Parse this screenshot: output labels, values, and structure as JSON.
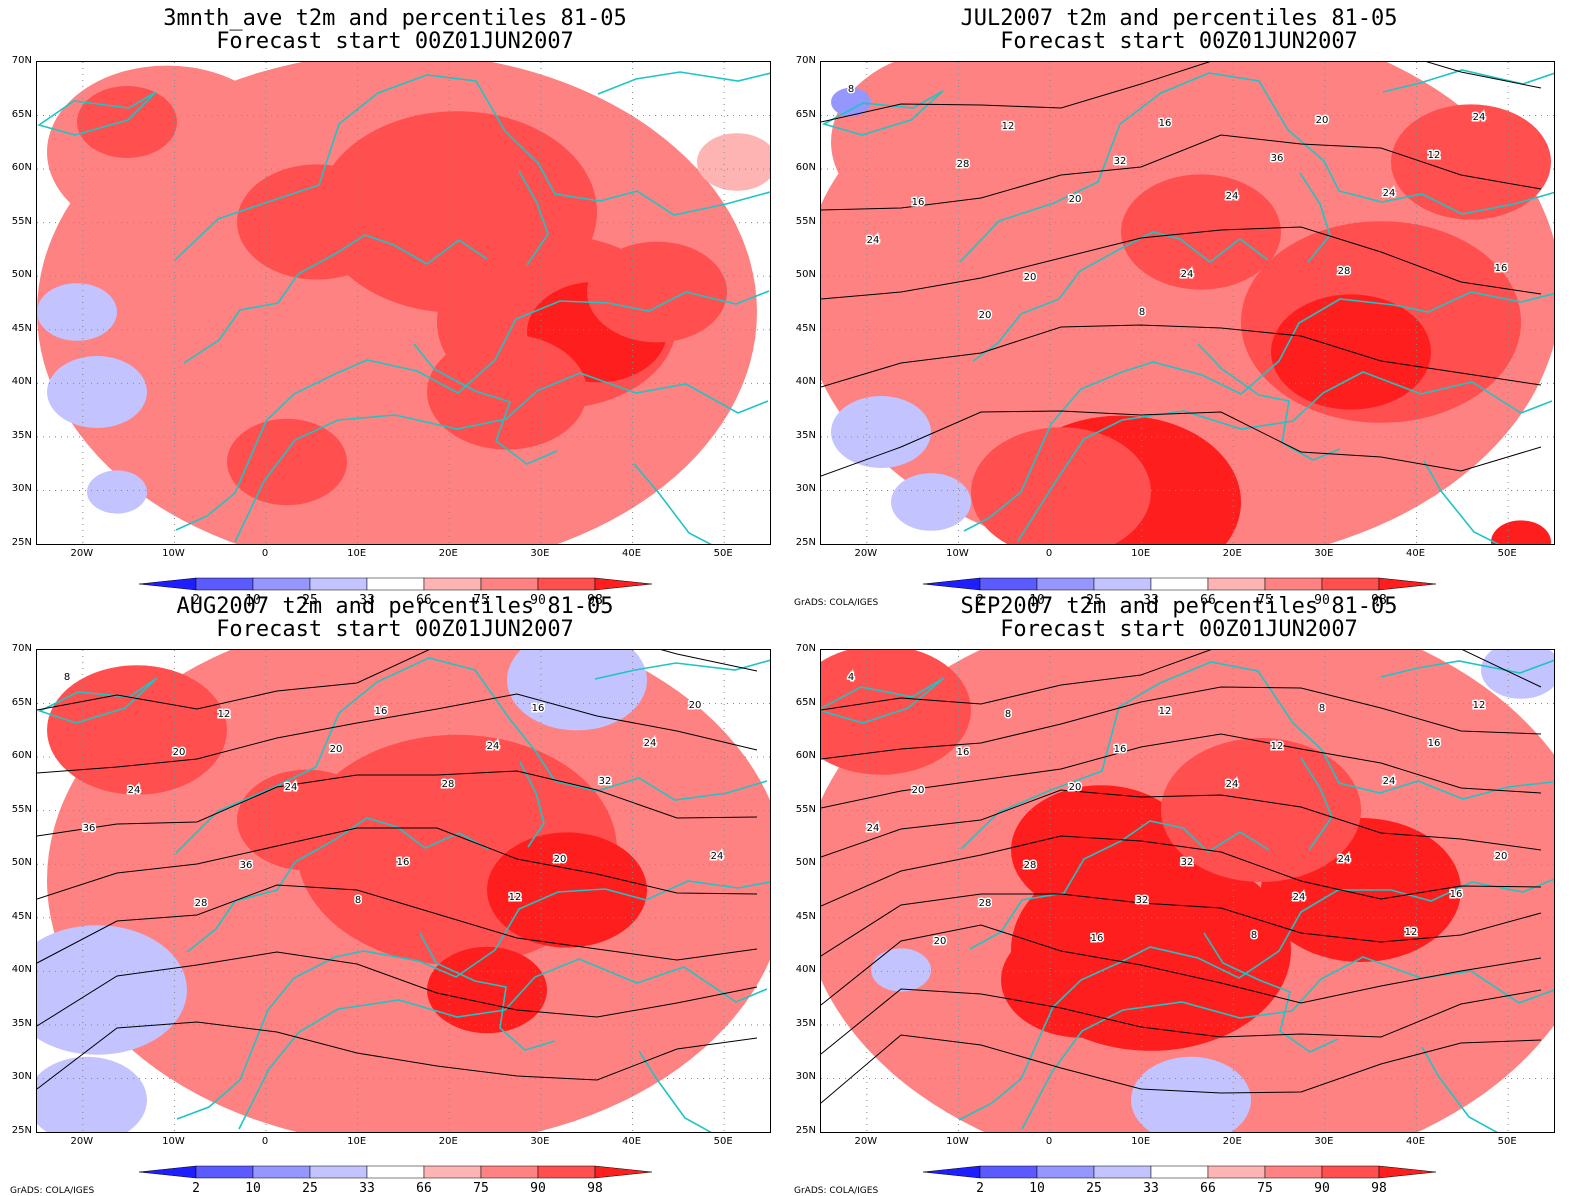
{
  "panels": [
    {
      "title_line1": "3mnth_ave t2m and percentiles 81-05",
      "title_line2": "Forecast start 00Z01JUN2007",
      "credit": ""
    },
    {
      "title_line1": "JUL2007 t2m and percentiles 81-05",
      "title_line2": "Forecast start 00Z01JUN2007",
      "credit": "GrADS: COLA/IGES"
    },
    {
      "title_line1": "AUG2007 t2m and percentiles 81-05",
      "title_line2": "Forecast start 00Z01JUN2007",
      "credit": "GrADS: COLA/IGES"
    },
    {
      "title_line1": "SEP2007 t2m and percentiles 81-05",
      "title_line2": "Forecast start 00Z01JUN2007",
      "credit": "GrADS: COLA/IGES"
    }
  ],
  "lat_labels": [
    "70N",
    "65N",
    "60N",
    "55N",
    "50N",
    "45N",
    "40N",
    "35N",
    "30N",
    "25N"
  ],
  "lon_labels": [
    "20W",
    "10W",
    "0",
    "10E",
    "20E",
    "30E",
    "40E",
    "50E"
  ],
  "colorbar": {
    "labels": [
      "2",
      "10",
      "25",
      "33",
      "66",
      "75",
      "90",
      "98"
    ],
    "colors": [
      "#1e1eff",
      "#5a5aff",
      "#9696ff",
      "#c3c3ff",
      "#ffffff",
      "#ffb4b4",
      "#ff8282",
      "#ff4f4f",
      "#ff1e1e"
    ]
  },
  "contour_labels": [
    [
      "",
      "",
      "",
      "",
      "",
      "",
      "",
      "",
      "",
      ""
    ],
    [
      "8",
      "12",
      "16",
      "20",
      "24",
      "28",
      "32",
      "36",
      "12",
      "16",
      "20",
      "24",
      "24",
      "24",
      "20",
      "24",
      "28",
      "16",
      "20",
      "8"
    ],
    [
      "8",
      "12",
      "16",
      "16",
      "20",
      "20",
      "20",
      "24",
      "24",
      "24",
      "24",
      "28",
      "32",
      "36",
      "36",
      "16",
      "20",
      "24",
      "28",
      "8",
      "12"
    ],
    [
      "4",
      "8",
      "12",
      "8",
      "12",
      "16",
      "16",
      "12",
      "16",
      "20",
      "20",
      "24",
      "24",
      "24",
      "28",
      "32",
      "24",
      "20",
      "28",
      "32",
      "24",
      "16",
      "20",
      "16",
      "8",
      "12"
    ]
  ],
  "map_extent": {
    "lon_min": -25,
    "lon_max": 55,
    "lat_min": 25,
    "lat_max": 70
  }
}
